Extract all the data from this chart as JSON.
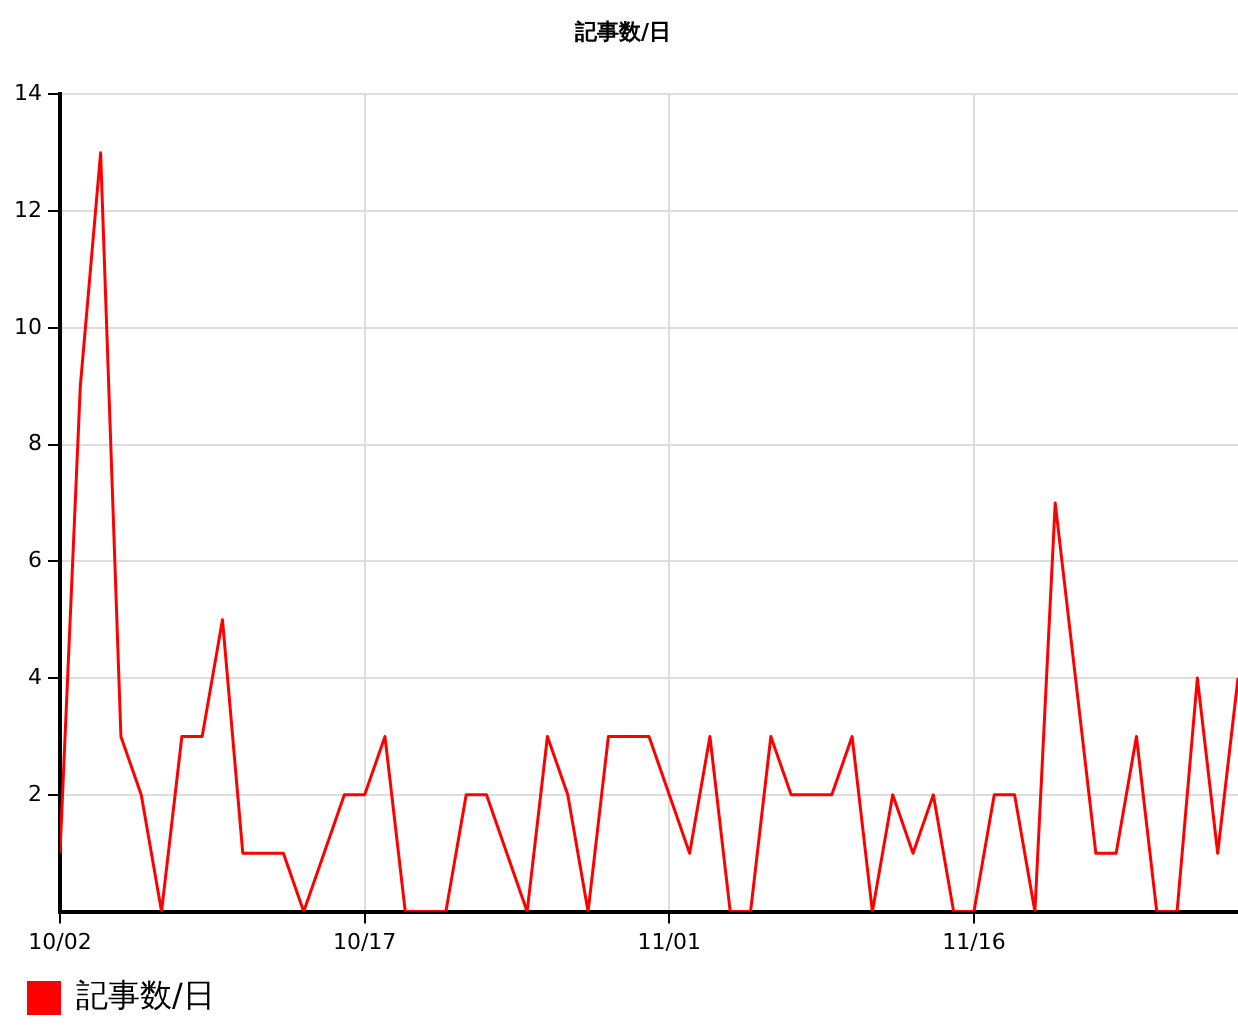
{
  "chart_data": {
    "type": "line",
    "title": "記事数/日",
    "x": [
      "--10-02",
      "--10-03",
      "--10-04",
      "--10-05",
      "--10-06",
      "--10-07",
      "--10-08",
      "--10-09",
      "--10-10",
      "--10-11",
      "--10-12",
      "--10-13",
      "--10-14",
      "--10-15",
      "--10-16",
      "--10-17",
      "--10-18",
      "--10-19",
      "--10-20",
      "--10-21",
      "--10-22",
      "--10-23",
      "--10-24",
      "--10-25",
      "--10-26",
      "--10-27",
      "--10-28",
      "--10-29",
      "--10-30",
      "--10-31",
      "--11-01",
      "--11-02",
      "--11-03",
      "--11-04",
      "--11-05",
      "--11-06",
      "--11-07",
      "--11-08",
      "--11-09",
      "--11-10",
      "--11-11",
      "--11-12",
      "--11-13",
      "--11-14",
      "--11-15",
      "--11-16",
      "--11-17",
      "--11-18",
      "--11-19",
      "--11-20",
      "--11-21",
      "--11-22",
      "--11-23",
      "--11-24",
      "--11-25",
      "--11-26",
      "--11-27",
      "--11-28",
      "--11-29"
    ],
    "series": [
      {
        "name": "記事数/日",
        "color": "#ff0000",
        "values": [
          1,
          9,
          13,
          3,
          2,
          0,
          3,
          3,
          5,
          1,
          1,
          1,
          0,
          1,
          2,
          2,
          3,
          0,
          0,
          0,
          2,
          2,
          1,
          0,
          3,
          2,
          0,
          3,
          3,
          3,
          2,
          1,
          3,
          0,
          0,
          3,
          2,
          2,
          2,
          3,
          0,
          2,
          1,
          2,
          0,
          0,
          2,
          2,
          0,
          7,
          4,
          1,
          1,
          3,
          0,
          0,
          4,
          1,
          4
        ]
      }
    ],
    "xlim": [
      "--10-02",
      "--11-29"
    ],
    "xticks": [
      {
        "value": "--10-02",
        "label": "10/02"
      },
      {
        "value": "--10-17",
        "label": "10/17"
      },
      {
        "value": "--11-01",
        "label": "11/01"
      },
      {
        "value": "--11-16",
        "label": "11/16"
      }
    ],
    "ylim": [
      0,
      14
    ],
    "yticks": [
      2,
      4,
      6,
      8,
      10,
      12,
      14
    ],
    "grid": true,
    "legend": "bottom left",
    "marker": "none",
    "line_style": "solid"
  }
}
